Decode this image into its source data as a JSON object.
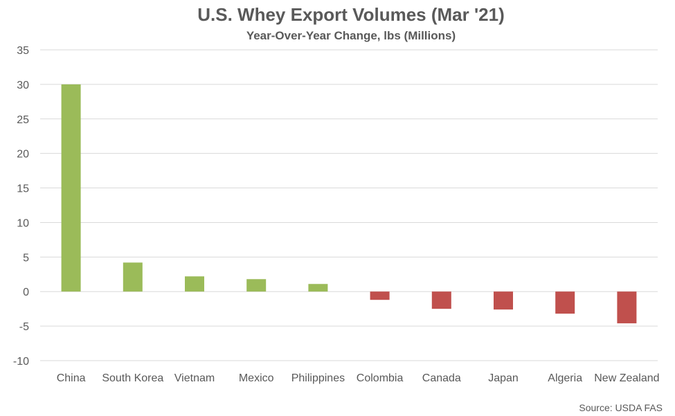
{
  "chart_data": {
    "type": "bar",
    "title": "U.S. Whey Export Volumes (Mar '21)",
    "subtitle": "Year-Over-Year Change, lbs (Millions)",
    "categories": [
      "China",
      "South Korea",
      "Vietnam",
      "Mexico",
      "Philippines",
      "Colombia",
      "Canada",
      "Japan",
      "Algeria",
      "New Zealand"
    ],
    "values": [
      30.0,
      4.2,
      2.2,
      1.8,
      1.1,
      -1.2,
      -2.5,
      -2.6,
      -3.2,
      -4.6
    ],
    "ylim": [
      -10,
      35
    ],
    "yticks": [
      35,
      30,
      25,
      20,
      15,
      10,
      5,
      0,
      -5,
      -10
    ],
    "grid": true,
    "colors": {
      "positive": "#9BBB59",
      "negative": "#C0504D",
      "grid": "#D9D9D9",
      "text": "#595959"
    },
    "source": "Source: USDA FAS"
  }
}
